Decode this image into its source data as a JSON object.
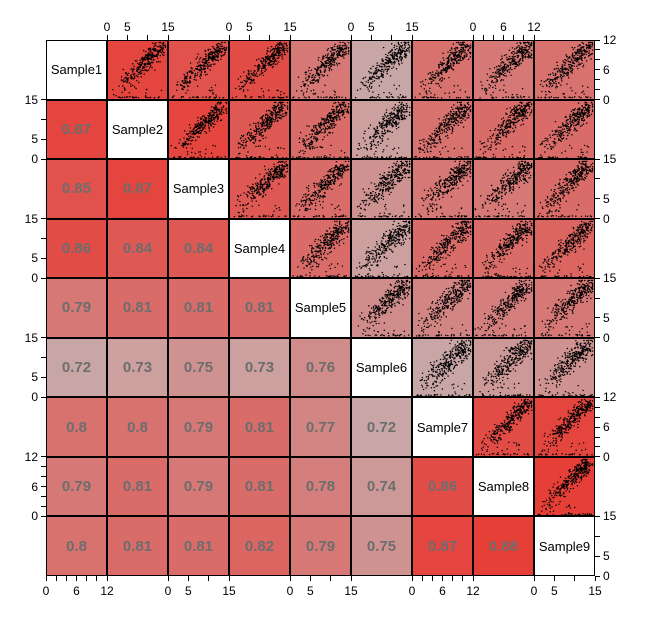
{
  "figure": {
    "background": "#ffffff",
    "panel_border_color": "#000000",
    "point_color": "#000000",
    "diagonal_background": "#ffffff",
    "correlation_text_color": "#6d6d6d",
    "axis_text_color": "#000000"
  },
  "chart_data": {
    "type": "scatter",
    "subtype": "pairs-scatterplot-matrix-with-correlations",
    "title": "",
    "samples": [
      "Sample1",
      "Sample2",
      "Sample3",
      "Sample4",
      "Sample5",
      "Sample6",
      "Sample7",
      "Sample8",
      "Sample9"
    ],
    "lower_triangle": "pearson correlation values, displayed as gray bold text",
    "upper_triangle": "scatterplots of sample pairs, black points on correlation-colored background",
    "correlations": [
      [],
      [
        0.87
      ],
      [
        0.85,
        0.87
      ],
      [
        0.86,
        0.84,
        0.84
      ],
      [
        0.79,
        0.81,
        0.81,
        0.81
      ],
      [
        0.72,
        0.73,
        0.75,
        0.73,
        0.76
      ],
      [
        0.8,
        0.8,
        0.79,
        0.81,
        0.77,
        0.72
      ],
      [
        0.79,
        0.81,
        0.79,
        0.81,
        0.78,
        0.74,
        0.86
      ],
      [
        0.8,
        0.81,
        0.81,
        0.82,
        0.79,
        0.75,
        0.87,
        0.88
      ]
    ],
    "color_scale": {
      "low_value": 0.72,
      "high_value": 0.88,
      "low_color": "#c9a6a6",
      "high_color": "#e63f38"
    },
    "axes": {
      "scales": {
        "s15": {
          "max": 15,
          "ticks": [
            0,
            5,
            10,
            15
          ],
          "labeled_ticks": [
            0,
            5,
            15
          ]
        },
        "s12": {
          "max": 12,
          "ticks": [
            0,
            2,
            4,
            6,
            8,
            10,
            12
          ],
          "labeled_ticks": [
            0,
            6,
            12
          ]
        }
      },
      "sample_scales": [
        "s12",
        "s15",
        "s15",
        "s15",
        "s15",
        "s15",
        "s12",
        "s12",
        "s15"
      ],
      "top_panels": [
        2,
        4,
        6,
        8
      ],
      "bottom_panels": [
        1,
        3,
        5,
        7,
        9
      ],
      "left_panels": [
        2,
        4,
        6,
        8
      ],
      "right_panels": [
        1,
        3,
        5,
        7,
        9
      ]
    }
  }
}
